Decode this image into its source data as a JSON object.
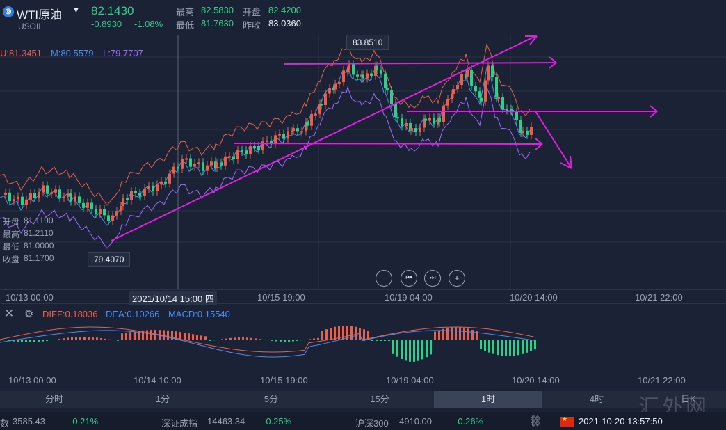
{
  "header": {
    "symbol_name": "WTI原油",
    "symbol_code": "USOIL",
    "dropdown_icon": "caret-down",
    "last_price": "82.1430",
    "change": "-0.8930",
    "change_pct": "-1.08%",
    "high_label": "最高",
    "high_value": "82.5830",
    "open_label": "开盘",
    "open_value": "82.4200",
    "low_label": "最低",
    "low_value": "81.7630",
    "prev_close_label": "昨收",
    "prev_close_value": "83.0360"
  },
  "indicators": {
    "upper": "U:81.3451",
    "middle": "M:80.5579",
    "lower": "L:79.7707"
  },
  "candle_info": {
    "open_label": "开盘",
    "open_value": "81.1190",
    "high_label": "最高",
    "high_value": "81.2110",
    "low_label": "最低",
    "low_value": "81.0000",
    "close_label": "收盘",
    "close_value": "81.1700"
  },
  "price_labels": {
    "peak": "83.8510",
    "trough": "79.4070"
  },
  "main_axis": {
    "labels": [
      "10/13 00:00",
      "10/15 19:00",
      "10/19 04:00",
      "10/20 14:00",
      "10/21 22:00"
    ],
    "crosshair_label": "2021/10/14 15:00 四"
  },
  "macd": {
    "diff": "DIFF:0.18036",
    "dea": "DEA:0.10266",
    "macd": "MACD:0.15540",
    "close_icon": "close-icon",
    "settings_icon": "gear-icon"
  },
  "macd_axis": {
    "labels": [
      "10/13 00:00",
      "10/14 10:00",
      "10/15 19:00",
      "10/19 04:00",
      "10/20 14:00",
      "10/21 22:00"
    ]
  },
  "zoom_controls": {
    "zoom_out": "−",
    "prev": "⏮",
    "next": "⏭",
    "zoom_in": "+"
  },
  "timeframes": [
    {
      "label": "分时",
      "active": false
    },
    {
      "label": "1分",
      "active": false
    },
    {
      "label": "5分",
      "active": false
    },
    {
      "label": "15分",
      "active": false
    },
    {
      "label": "1时",
      "active": true
    },
    {
      "label": "4时",
      "active": false
    },
    {
      "label": "日K",
      "active": false
    }
  ],
  "ticker": {
    "item1_name": "数",
    "item1_value": "3585.43",
    "item1_change": "-0.21%",
    "item2_name": "深证成指",
    "item2_value": "14463.34",
    "item2_change": "-0.25%",
    "item3_name": "沪深300",
    "item3_value": "4910.00",
    "item3_change": "-0.26%",
    "datetime": "2021-10-20 13:57:50"
  },
  "watermark": "汇外网",
  "colors": {
    "background": "#1b2235",
    "up": "#e8604c",
    "down": "#2fcf8a",
    "trendline": "#e020e0",
    "upper_band": "#e8604c",
    "middle_band": "#4c8cf0",
    "lower_band": "#9d6bff"
  }
}
